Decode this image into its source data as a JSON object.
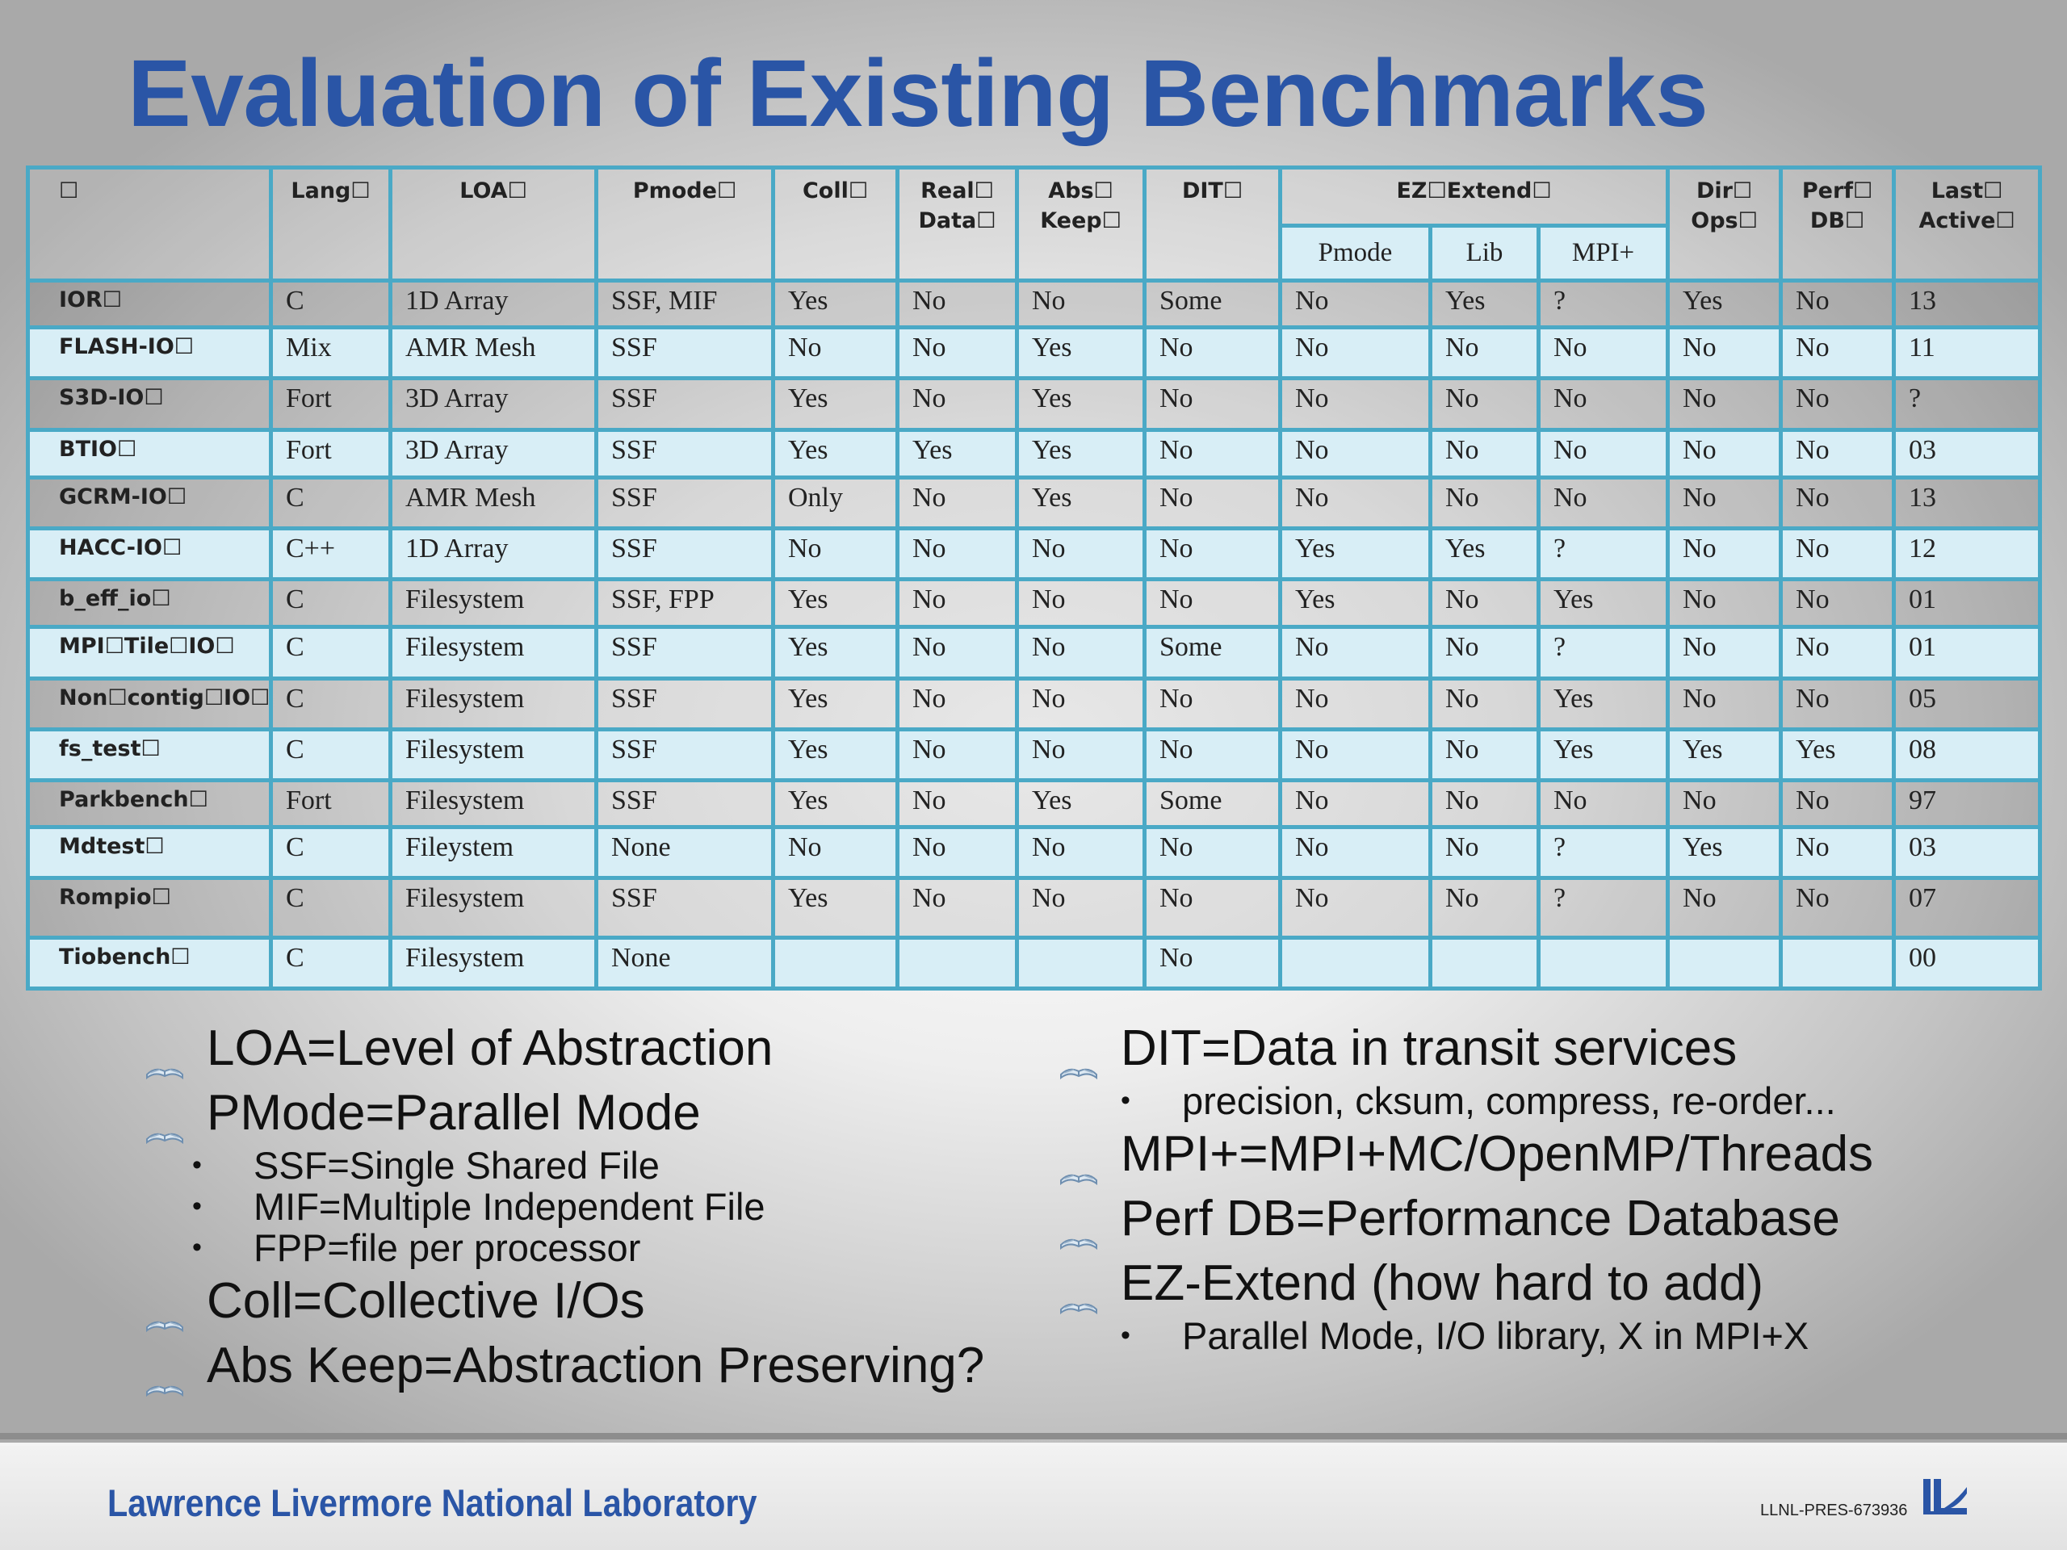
{
  "title": "Evaluation of Existing Benchmarks",
  "table": {
    "headers": {
      "corner": "☐",
      "lang": "Lang☐",
      "loa": "LOA☐",
      "pmode": "Pmode☐",
      "coll": "Coll☐",
      "real_data_1": "Real☐",
      "real_data_2": "Data☐",
      "abs_keep_1": "Abs☐",
      "abs_keep_2": "Keep☐",
      "dit": "DIT☐",
      "ez_extend": "EZ☐Extend☐",
      "ez_pmode": "Pmode",
      "ez_lib": "Lib",
      "ez_mpi": "MPI+",
      "dir_ops_1": "Dir☐",
      "dir_ops_2": "Ops☐",
      "perf_db_1": "Perf☐",
      "perf_db_2": "DB☐",
      "last_active_1": "Last☐",
      "last_active_2": "Active☐"
    },
    "rows": [
      {
        "name": "IOR☐",
        "cells": [
          "C",
          "1D Array",
          "SSF, MIF",
          "Yes",
          "No",
          "No",
          "Some",
          "No",
          "Yes",
          "?",
          "Yes",
          "No",
          "13"
        ]
      },
      {
        "name": "FLASH-IO☐",
        "cells": [
          "Mix",
          "AMR Mesh",
          "SSF",
          "No",
          "No",
          "Yes",
          "No",
          "No",
          "No",
          "No",
          "No",
          "No",
          "11"
        ]
      },
      {
        "name": "S3D-IO☐",
        "cells": [
          "Fort",
          "3D Array",
          "SSF",
          "Yes",
          "No",
          "Yes",
          "No",
          "No",
          "No",
          "No",
          "No",
          "No",
          "?"
        ]
      },
      {
        "name": "BTIO☐",
        "cells": [
          "Fort",
          "3D Array",
          "SSF",
          "Yes",
          "Yes",
          "Yes",
          "No",
          "No",
          "No",
          "No",
          "No",
          "No",
          "03"
        ]
      },
      {
        "name": "GCRM-IO☐",
        "cells": [
          "C",
          "AMR Mesh",
          "SSF",
          "Only",
          "No",
          "Yes",
          "No",
          "No",
          "No",
          "No",
          "No",
          "No",
          "13"
        ]
      },
      {
        "name": "HACC-IO☐",
        "cells": [
          "C++",
          "1D Array",
          "SSF",
          "No",
          "No",
          "No",
          "No",
          "Yes",
          "Yes",
          "?",
          "No",
          "No",
          "12"
        ]
      },
      {
        "name": "b_eff_io☐",
        "cells": [
          "C",
          "Filesystem",
          "SSF, FPP",
          "Yes",
          "No",
          "No",
          "No",
          "Yes",
          "No",
          "Yes",
          "No",
          "No",
          "01"
        ]
      },
      {
        "name": "MPI☐Tile☐IO☐",
        "cells": [
          "C",
          "Filesystem",
          "SSF",
          "Yes",
          "No",
          "No",
          "Some",
          "No",
          "No",
          "?",
          "No",
          "No",
          "01"
        ]
      },
      {
        "name": "Non☐contig☐IO☐",
        "cells": [
          "C",
          "Filesystem",
          "SSF",
          "Yes",
          "No",
          "No",
          "No",
          "No",
          "No",
          "Yes",
          "No",
          "No",
          "05"
        ]
      },
      {
        "name": "fs_test☐",
        "cells": [
          "C",
          "Filesystem",
          "SSF",
          "Yes",
          "No",
          "No",
          "No",
          "No",
          "No",
          "Yes",
          "Yes",
          "Yes",
          "08"
        ]
      },
      {
        "name": "Parkbench☐",
        "cells": [
          "Fort",
          "Filesystem",
          "SSF",
          "Yes",
          "No",
          "Yes",
          "Some",
          "No",
          "No",
          "No",
          "No",
          "No",
          "97"
        ]
      },
      {
        "name": "Mdtest☐",
        "cells": [
          "C",
          "Fileystem",
          "None",
          "No",
          "No",
          "No",
          "No",
          "No",
          "No",
          "?",
          "Yes",
          "No",
          "03"
        ]
      },
      {
        "name": "Rompio☐",
        "cells": [
          "C",
          "Filesystem",
          "SSF",
          "Yes",
          "No",
          "No",
          "No",
          "No",
          "No",
          "?",
          "No",
          "No",
          "07"
        ]
      },
      {
        "name": "Tiobench☐",
        "cells": [
          "C",
          "Filesystem",
          "None",
          "",
          "",
          "",
          "No",
          "",
          "",
          "",
          "",
          "",
          "00"
        ]
      }
    ]
  },
  "legend_left": [
    {
      "text": "LOA=Level of Abstraction",
      "subs": []
    },
    {
      "text": "PMode=Parallel Mode",
      "subs": [
        "SSF=Single Shared File",
        "MIF=Multiple Independent File",
        "FPP=file per processor"
      ]
    },
    {
      "text": "Coll=Collective I/Os",
      "subs": []
    },
    {
      "text": "Abs Keep=Abstraction Preserving?",
      "subs": []
    }
  ],
  "legend_right": [
    {
      "text": "DIT=Data in transit services",
      "subs": [
        "precision, cksum, compress, re-order..."
      ]
    },
    {
      "text": "MPI+=MPI+MC/OpenMP/Threads",
      "subs": []
    },
    {
      "text": "Perf DB=Performance Database",
      "subs": []
    },
    {
      "text": "EZ-Extend (how hard to add)",
      "subs": [
        "Parallel Mode, I/O library, X in MPI+X"
      ]
    }
  ],
  "bullet_char": "•",
  "footer": {
    "lab": "Lawrence Livermore National Laboratory",
    "pres_id": "LLNL-PRES-673936"
  },
  "colors": {
    "title": "#2a55a6",
    "table_border": "#4aa9c6",
    "row_tint": "#d8eef6"
  }
}
